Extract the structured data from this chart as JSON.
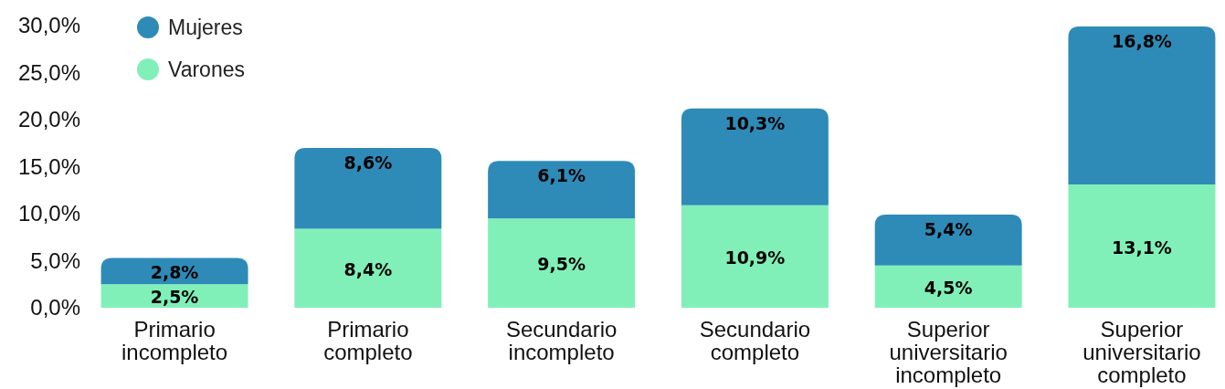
{
  "chart_data": {
    "type": "bar",
    "stacked": true,
    "categories": [
      "Primario incompleto",
      "Primario completo",
      "Secundario incompleto",
      "Secundario completo",
      "Superior universitario incompleto",
      "Superior universitario completo"
    ],
    "series": [
      {
        "name": "Varones",
        "color": "#80f0b8",
        "values": [
          2.5,
          8.4,
          9.5,
          10.9,
          4.5,
          13.1
        ],
        "value_labels": [
          "2,5%",
          "8,4%",
          "9,5%",
          "10,9%",
          "4,5%",
          "13,1%"
        ]
      },
      {
        "name": "Mujeres",
        "color": "#2e8bb8",
        "values": [
          2.8,
          8.6,
          6.1,
          10.3,
          5.4,
          16.8
        ],
        "value_labels": [
          "2,8%",
          "8,6%",
          "6,1%",
          "10,3%",
          "5,4%",
          "16,8%"
        ]
      }
    ],
    "ylim": [
      0,
      30
    ],
    "yticks": [
      {
        "value": 0,
        "label": "0,0%"
      },
      {
        "value": 5,
        "label": "5,0%"
      },
      {
        "value": 10,
        "label": "10,0%"
      },
      {
        "value": 15,
        "label": "15,0%"
      },
      {
        "value": 20,
        "label": "20,0%"
      },
      {
        "value": 25,
        "label": "25,0%"
      },
      {
        "value": 30,
        "label": "30,0%"
      }
    ],
    "grid": false,
    "legend": "top left"
  }
}
